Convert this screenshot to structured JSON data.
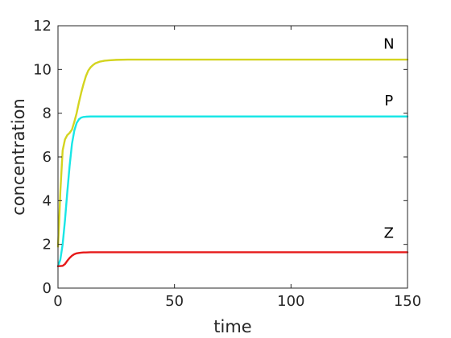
{
  "chart_data": {
    "type": "line",
    "title": "",
    "xlabel": "time",
    "ylabel": "concentration",
    "xlim": [
      0,
      150
    ],
    "ylim": [
      0,
      12
    ],
    "xticks": [
      "0",
      "50",
      "100",
      "150"
    ],
    "yticks": [
      "0",
      "2",
      "4",
      "6",
      "8",
      "10",
      "12"
    ],
    "grid": false,
    "legend": "none",
    "series": [
      {
        "name": "N",
        "color": "#d4d420",
        "x": [
          0,
          0.5,
          1,
          2,
          3,
          4,
          5,
          6,
          7,
          8,
          9,
          10,
          11,
          12,
          13,
          14,
          15,
          16,
          18,
          20,
          22,
          25,
          30,
          40,
          60,
          100,
          150
        ],
        "y": [
          1.9,
          3.0,
          4.4,
          6.3,
          6.8,
          7.0,
          7.1,
          7.25,
          7.6,
          8.0,
          8.5,
          8.95,
          9.35,
          9.7,
          9.95,
          10.1,
          10.2,
          10.28,
          10.36,
          10.4,
          10.42,
          10.44,
          10.45,
          10.45,
          10.45,
          10.45,
          10.45
        ]
      },
      {
        "name": "P",
        "color": "#19e6e6",
        "x": [
          0,
          1,
          2,
          3,
          4,
          5,
          6,
          7,
          8,
          9,
          10,
          11,
          12,
          14,
          16,
          20,
          30,
          60,
          100,
          150
        ],
        "y": [
          1.0,
          1.3,
          2.0,
          3.1,
          4.4,
          5.6,
          6.6,
          7.2,
          7.55,
          7.72,
          7.8,
          7.83,
          7.84,
          7.85,
          7.85,
          7.85,
          7.85,
          7.85,
          7.85,
          7.85
        ]
      },
      {
        "name": "Z",
        "color": "#e61919",
        "x": [
          0,
          2,
          3,
          4,
          5,
          6,
          7,
          8,
          9,
          10,
          11,
          12,
          14,
          16,
          20,
          30,
          60,
          100,
          150
        ],
        "y": [
          1.0,
          1.02,
          1.1,
          1.25,
          1.38,
          1.48,
          1.55,
          1.59,
          1.61,
          1.62,
          1.63,
          1.63,
          1.64,
          1.64,
          1.64,
          1.64,
          1.64,
          1.64,
          1.64
        ]
      }
    ],
    "annotations": [
      {
        "text": "N",
        "x": 142,
        "y": 10.95
      },
      {
        "text": "P",
        "x": 142,
        "y": 8.35
      },
      {
        "text": "Z",
        "x": 142,
        "y": 2.3
      }
    ]
  }
}
